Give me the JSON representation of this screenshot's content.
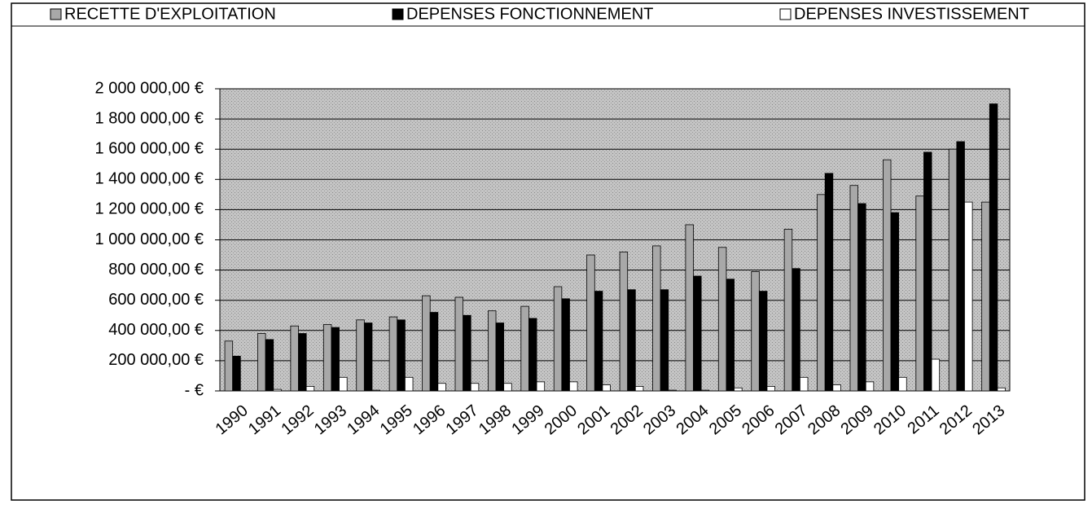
{
  "chart_data": {
    "type": "bar",
    "categories": [
      "1990",
      "1991",
      "1992",
      "1993",
      "1994",
      "1995",
      "1996",
      "1997",
      "1998",
      "1999",
      "2000",
      "2001",
      "2002",
      "2003",
      "2004",
      "2005",
      "2006",
      "2007",
      "2008",
      "2009",
      "2010",
      "2011",
      "2012",
      "2013"
    ],
    "series": [
      {
        "name": "RECETTE D'EXPLOITATION",
        "color": "#a8a8a8",
        "values": [
          330000,
          380000,
          430000,
          440000,
          470000,
          490000,
          630000,
          620000,
          530000,
          560000,
          690000,
          900000,
          920000,
          960000,
          1100000,
          950000,
          790000,
          1070000,
          1300000,
          1360000,
          1530000,
          1290000,
          1600000,
          1250000
        ]
      },
      {
        "name": "DEPENSES FONCTIONNEMENT",
        "color": "#000000",
        "values": [
          230000,
          340000,
          380000,
          420000,
          450000,
          470000,
          520000,
          500000,
          450000,
          480000,
          610000,
          660000,
          670000,
          670000,
          760000,
          740000,
          660000,
          810000,
          1440000,
          1240000,
          1180000,
          1580000,
          1650000,
          1900000
        ]
      },
      {
        "name": "DEPENSES INVESTISSEMENT",
        "color": "#ffffff",
        "values": [
          0,
          10000,
          30000,
          90000,
          5000,
          90000,
          50000,
          50000,
          50000,
          60000,
          60000,
          40000,
          30000,
          5000,
          5000,
          20000,
          30000,
          90000,
          40000,
          60000,
          90000,
          210000,
          1250000,
          20000
        ]
      }
    ],
    "ylim": [
      0,
      2000000
    ],
    "yticks": [
      {
        "value": 0,
        "label": "-   €"
      },
      {
        "value": 200000,
        "label": "200 000,00 €"
      },
      {
        "value": 400000,
        "label": "400 000,00 €"
      },
      {
        "value": 600000,
        "label": "600 000,00 €"
      },
      {
        "value": 800000,
        "label": "800 000,00 €"
      },
      {
        "value": 1000000,
        "label": "1 000 000,00 €"
      },
      {
        "value": 1200000,
        "label": "1 200 000,00 €"
      },
      {
        "value": 1400000,
        "label": "1 400 000,00 €"
      },
      {
        "value": 1600000,
        "label": "1 600 000,00 €"
      },
      {
        "value": 1800000,
        "label": "1 800 000,00 €"
      },
      {
        "value": 2000000,
        "label": "2 000 000,00 €"
      }
    ],
    "grid": true,
    "legend": "top"
  }
}
